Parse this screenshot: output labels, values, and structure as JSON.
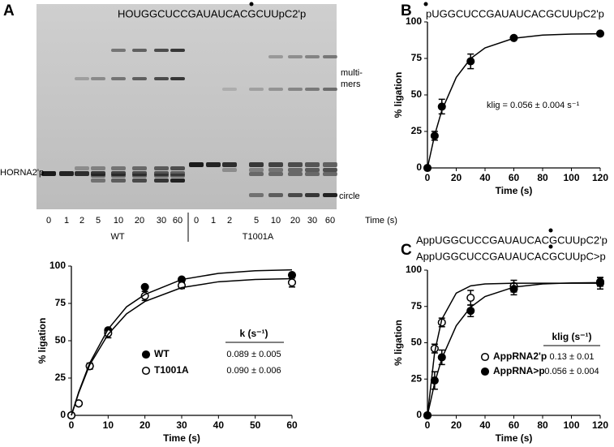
{
  "panel_labels": [
    "A",
    "B",
    "C"
  ],
  "gel": {
    "title": "HOUGGCUCCGAUAUCACGCUUpC2'p",
    "lanes": [
      "0",
      "1",
      "2",
      "5",
      "10",
      "20",
      "30",
      "60",
      "0",
      "1",
      "2",
      "5",
      "10",
      "20",
      "30",
      "60"
    ],
    "time_label": "Time (s)",
    "groups": [
      "WT",
      "T1001A"
    ],
    "multimers": [
      "multi-",
      "mers"
    ],
    "substrate": "HORNA2'p",
    "circle": "circle"
  },
  "chart_data": [
    {
      "type": "scatter",
      "xlabel": "Time (s)",
      "ylabel": "% ligation",
      "xlim": [
        0,
        60
      ],
      "xticks": [
        0,
        10,
        20,
        30,
        40,
        50,
        60
      ],
      "ylim": [
        0,
        100
      ],
      "yticks": [
        0,
        25,
        50,
        75,
        100
      ],
      "series": [
        {
          "name": "WT",
          "marker": "filled",
          "color": "#000000",
          "x": [
            0,
            2,
            5,
            10,
            20,
            30,
            60
          ],
          "values": [
            0,
            8,
            33,
            57,
            86,
            91,
            94
          ],
          "errors": [
            null,
            null,
            null,
            null,
            null,
            null,
            null
          ]
        },
        {
          "name": "T1001A",
          "marker": "open",
          "color": "#000000",
          "x": [
            0,
            2,
            5,
            10,
            20,
            30,
            60
          ],
          "values": [
            0,
            8,
            33,
            55,
            80,
            87,
            89
          ],
          "errors": [
            null,
            null,
            2,
            3,
            3,
            2,
            3
          ]
        },
        {
          "type": "line",
          "color": "#000000",
          "x": [
            0,
            2,
            5,
            10,
            15,
            20,
            30,
            40,
            50,
            60
          ],
          "values": [
            0,
            15.7,
            35.1,
            57.8,
            72.7,
            81.0,
            91.0,
            95.1,
            96.9,
            97.5
          ]
        },
        {
          "type": "line",
          "color": "#000000",
          "x": [
            0,
            2,
            5,
            10,
            15,
            20,
            30,
            40,
            50,
            60
          ],
          "values": [
            0,
            15.1,
            33.9,
            54.3,
            68.0,
            76.3,
            85.6,
            89.5,
            91.0,
            91.6
          ]
        }
      ],
      "table": {
        "header": "k (s⁻¹)",
        "rows": [
          "0.089 ± 0.005",
          "0.090 ± 0.006"
        ]
      }
    },
    {
      "type": "scatter",
      "titles": [
        "pUGGCUCCGAUAUCACGCUUpC2'p"
      ],
      "xlabel": "Time (s)",
      "ylabel": "% ligation",
      "xlim": [
        0,
        120
      ],
      "xticks": [
        0,
        20,
        40,
        60,
        80,
        100,
        120
      ],
      "ylim": [
        0,
        100
      ],
      "yticks": [
        0,
        25,
        50,
        75,
        100
      ],
      "series": [
        {
          "marker": "filled",
          "color": "#000000",
          "x": [
            0,
            5,
            10,
            30,
            60,
            120
          ],
          "values": [
            0,
            22,
            42,
            73,
            89,
            92
          ],
          "errors": [
            null,
            3,
            5,
            5,
            null,
            null
          ]
        },
        {
          "type": "line",
          "color": "#000000",
          "x": [
            0,
            5,
            10,
            20,
            30,
            40,
            60,
            80,
            100,
            120
          ],
          "values": [
            0,
            22.5,
            39.4,
            62.0,
            74.9,
            82.2,
            88.8,
            91.0,
            91.7,
            91.9
          ]
        }
      ],
      "annotation": "klig = 0.056 ± 0.004 s⁻¹"
    },
    {
      "type": "scatter",
      "titles": [
        "AppUGGCUCCGAUAUCACGCUUpC2'p",
        "AppUGGCUCCGAUAUCACGCUUpC>p"
      ],
      "xlabel": "Time (s)",
      "ylabel": "% ligation",
      "xlim": [
        0,
        120
      ],
      "xticks": [
        0,
        20,
        40,
        60,
        80,
        100,
        120
      ],
      "ylim": [
        0,
        100
      ],
      "yticks": [
        0,
        25,
        50,
        75,
        100
      ],
      "series": [
        {
          "name": "AppRNA2'p",
          "marker": "open",
          "color": "#000000",
          "x": [
            0,
            5,
            10,
            30,
            60,
            120
          ],
          "values": [
            0,
            46,
            64,
            81,
            89,
            91
          ],
          "errors": [
            null,
            3,
            3,
            5,
            4,
            4
          ]
        },
        {
          "name": "AppRNA>p",
          "marker": "filled",
          "color": "#000000",
          "x": [
            0,
            5,
            10,
            30,
            60,
            120
          ],
          "values": [
            0,
            24,
            40,
            72,
            87,
            92
          ],
          "errors": [
            null,
            6,
            5,
            4,
            4,
            3
          ]
        },
        {
          "type": "line",
          "color": "#000000",
          "x": [
            0,
            5,
            10,
            20,
            30,
            40,
            60,
            80,
            100,
            120
          ],
          "values": [
            0,
            43.5,
            66.2,
            84.2,
            89.2,
            90.5,
            91.0,
            91.0,
            91.0,
            91.0
          ]
        },
        {
          "type": "line",
          "color": "#000000",
          "x": [
            0,
            5,
            10,
            20,
            30,
            40,
            60,
            80,
            100,
            120
          ],
          "values": [
            0,
            22.4,
            39.2,
            61.7,
            74.5,
            81.8,
            88.3,
            90.5,
            91.2,
            91.4
          ]
        }
      ],
      "table": {
        "header": "klig (s⁻¹)",
        "rows": [
          "0.13 ± 0.01",
          "0.056 ± 0.004"
        ]
      }
    }
  ]
}
